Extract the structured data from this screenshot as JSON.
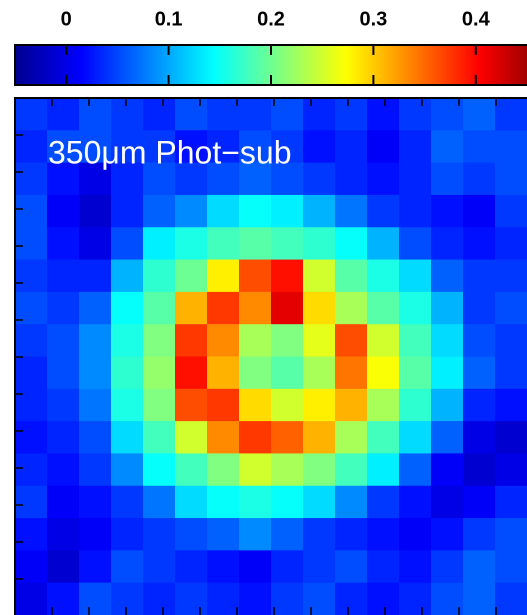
{
  "chart_data": {
    "type": "heatmap",
    "colormap": "jet",
    "annotation": "350μm Phot−sub",
    "clim": [
      -0.05,
      0.45
    ],
    "cticks": [
      0,
      0.1,
      0.2,
      0.3,
      0.4
    ],
    "z": [
      [
        0.04,
        0.03,
        0.05,
        0.04,
        0.03,
        0.05,
        0.04,
        0.04,
        0.05,
        0.03,
        0.04,
        0.02,
        0.04,
        0.05,
        0.06,
        0.04
      ],
      [
        0.03,
        0.05,
        0.05,
        0.04,
        0.04,
        0.02,
        0.03,
        0.05,
        0.04,
        0.02,
        0.03,
        0.01,
        0.03,
        0.06,
        0.05,
        0.05
      ],
      [
        0.04,
        0.02,
        0.0,
        0.03,
        0.05,
        0.04,
        0.05,
        0.06,
        0.05,
        0.04,
        0.03,
        0.02,
        0.03,
        0.05,
        0.04,
        0.05
      ],
      [
        0.05,
        0.01,
        -0.01,
        0.03,
        0.06,
        0.08,
        0.12,
        0.14,
        0.13,
        0.1,
        0.07,
        0.04,
        0.03,
        0.02,
        0.01,
        0.04
      ],
      [
        0.05,
        0.02,
        0.0,
        0.05,
        0.13,
        0.15,
        0.17,
        0.18,
        0.17,
        0.16,
        0.14,
        0.1,
        0.05,
        0.03,
        0.02,
        0.03
      ],
      [
        0.04,
        0.03,
        0.03,
        0.1,
        0.16,
        0.19,
        0.27,
        0.35,
        0.38,
        0.24,
        0.18,
        0.15,
        0.12,
        0.06,
        0.04,
        0.04
      ],
      [
        0.05,
        0.04,
        0.06,
        0.14,
        0.18,
        0.3,
        0.36,
        0.32,
        0.4,
        0.28,
        0.22,
        0.18,
        0.15,
        0.1,
        0.04,
        0.05
      ],
      [
        0.04,
        0.05,
        0.08,
        0.15,
        0.2,
        0.36,
        0.32,
        0.22,
        0.2,
        0.25,
        0.35,
        0.24,
        0.17,
        0.12,
        0.05,
        0.04
      ],
      [
        0.03,
        0.05,
        0.08,
        0.16,
        0.21,
        0.38,
        0.3,
        0.2,
        0.18,
        0.22,
        0.33,
        0.26,
        0.18,
        0.13,
        0.06,
        0.04
      ],
      [
        0.03,
        0.04,
        0.07,
        0.15,
        0.2,
        0.35,
        0.36,
        0.28,
        0.24,
        0.27,
        0.3,
        0.22,
        0.16,
        0.1,
        0.03,
        0.02
      ],
      [
        0.02,
        0.03,
        0.05,
        0.12,
        0.17,
        0.24,
        0.32,
        0.36,
        0.34,
        0.3,
        0.22,
        0.17,
        0.12,
        0.06,
        0.0,
        -0.01
      ],
      [
        0.03,
        0.02,
        0.04,
        0.08,
        0.14,
        0.17,
        0.2,
        0.24,
        0.22,
        0.2,
        0.17,
        0.13,
        0.06,
        0.01,
        -0.01,
        0.0
      ],
      [
        0.04,
        0.01,
        0.02,
        0.04,
        0.07,
        0.12,
        0.14,
        0.15,
        0.14,
        0.12,
        0.08,
        0.04,
        0.02,
        0.0,
        0.01,
        0.03
      ],
      [
        0.02,
        0.0,
        0.01,
        0.03,
        0.04,
        0.05,
        0.06,
        0.08,
        0.06,
        0.04,
        0.03,
        0.02,
        0.01,
        0.02,
        0.04,
        0.05
      ],
      [
        0.01,
        -0.01,
        0.02,
        0.05,
        0.04,
        0.03,
        0.02,
        0.01,
        0.03,
        0.04,
        0.05,
        0.03,
        0.02,
        0.04,
        0.06,
        0.05
      ],
      [
        0.0,
        0.02,
        0.05,
        0.04,
        0.03,
        0.04,
        0.03,
        0.02,
        0.04,
        0.05,
        0.03,
        0.02,
        0.03,
        0.05,
        0.06,
        0.04
      ]
    ]
  }
}
